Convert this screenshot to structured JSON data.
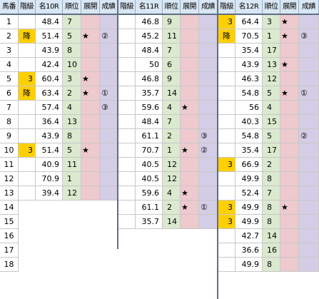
{
  "headers": {
    "umaban": "馬番",
    "kaikyu": "階級",
    "race1": "名10R",
    "race2": "名11R",
    "race3": "名12R",
    "rank": "順位",
    "tenkai": "展開",
    "seiseki": "成績"
  },
  "row_numbers": [
    "1",
    "2",
    "3",
    "4",
    "5",
    "6",
    "7",
    "8",
    "9",
    "10",
    "11",
    "12",
    "13",
    "14",
    "15",
    "16",
    "17",
    "18"
  ],
  "races": [
    {
      "rows": [
        {
          "kaikyu": "",
          "odds": "48.4",
          "rank": "7",
          "tenkai": "",
          "seiseki": ""
        },
        {
          "kaikyu": "降",
          "odds": "51.4",
          "rank": "5",
          "tenkai": "★",
          "seiseki": "②"
        },
        {
          "kaikyu": "",
          "odds": "43.9",
          "rank": "8",
          "tenkai": "",
          "seiseki": ""
        },
        {
          "kaikyu": "",
          "odds": "42.4",
          "rank": "10",
          "tenkai": "",
          "seiseki": ""
        },
        {
          "kaikyu": "3",
          "odds": "60.4",
          "rank": "3",
          "tenkai": "★",
          "seiseki": ""
        },
        {
          "kaikyu": "降",
          "odds": "63.4",
          "rank": "2",
          "tenkai": "★",
          "seiseki": "①"
        },
        {
          "kaikyu": "",
          "odds": "57.4",
          "rank": "4",
          "tenkai": "",
          "seiseki": "③"
        },
        {
          "kaikyu": "",
          "odds": "36.4",
          "rank": "13",
          "tenkai": "",
          "seiseki": ""
        },
        {
          "kaikyu": "",
          "odds": "43.9",
          "rank": "8",
          "tenkai": "",
          "seiseki": ""
        },
        {
          "kaikyu": "3",
          "odds": "51.4",
          "rank": "5",
          "tenkai": "★",
          "seiseki": ""
        },
        {
          "kaikyu": "",
          "odds": "40.9",
          "rank": "11",
          "tenkai": "",
          "seiseki": ""
        },
        {
          "kaikyu": "",
          "odds": "70.9",
          "rank": "1",
          "tenkai": "",
          "seiseki": ""
        },
        {
          "kaikyu": "",
          "odds": "39.4",
          "rank": "12",
          "tenkai": "",
          "seiseki": ""
        }
      ]
    },
    {
      "rows": [
        {
          "kaikyu": "",
          "odds": "46.8",
          "rank": "9",
          "tenkai": "",
          "seiseki": ""
        },
        {
          "kaikyu": "",
          "odds": "45.2",
          "rank": "11",
          "tenkai": "",
          "seiseki": ""
        },
        {
          "kaikyu": "",
          "odds": "48.4",
          "rank": "7",
          "tenkai": "",
          "seiseki": ""
        },
        {
          "kaikyu": "",
          "odds": "50",
          "rank": "6",
          "tenkai": "",
          "seiseki": ""
        },
        {
          "kaikyu": "",
          "odds": "46.8",
          "rank": "9",
          "tenkai": "",
          "seiseki": ""
        },
        {
          "kaikyu": "",
          "odds": "35.7",
          "rank": "14",
          "tenkai": "",
          "seiseki": ""
        },
        {
          "kaikyu": "",
          "odds": "59.6",
          "rank": "4",
          "tenkai": "★",
          "seiseki": ""
        },
        {
          "kaikyu": "",
          "odds": "48.4",
          "rank": "7",
          "tenkai": "",
          "seiseki": ""
        },
        {
          "kaikyu": "",
          "odds": "61.1",
          "rank": "2",
          "tenkai": "",
          "seiseki": "③"
        },
        {
          "kaikyu": "",
          "odds": "70.7",
          "rank": "1",
          "tenkai": "★",
          "seiseki": "②"
        },
        {
          "kaikyu": "",
          "odds": "40.5",
          "rank": "12",
          "tenkai": "",
          "seiseki": ""
        },
        {
          "kaikyu": "",
          "odds": "40.5",
          "rank": "12",
          "tenkai": "",
          "seiseki": ""
        },
        {
          "kaikyu": "",
          "odds": "59.6",
          "rank": "4",
          "tenkai": "★",
          "seiseki": ""
        },
        {
          "kaikyu": "",
          "odds": "61.1",
          "rank": "2",
          "tenkai": "★",
          "seiseki": "①"
        },
        {
          "kaikyu": "",
          "odds": "35.7",
          "rank": "14",
          "tenkai": "",
          "seiseki": ""
        }
      ]
    },
    {
      "rows": [
        {
          "kaikyu": "3",
          "odds": "64.4",
          "rank": "3",
          "tenkai": "★",
          "seiseki": ""
        },
        {
          "kaikyu": "降",
          "odds": "70.5",
          "rank": "1",
          "tenkai": "★",
          "seiseki": "③"
        },
        {
          "kaikyu": "",
          "odds": "35.4",
          "rank": "17",
          "tenkai": "",
          "seiseki": ""
        },
        {
          "kaikyu": "",
          "odds": "43.9",
          "rank": "13",
          "tenkai": "★",
          "seiseki": ""
        },
        {
          "kaikyu": "",
          "odds": "46.3",
          "rank": "12",
          "tenkai": "",
          "seiseki": ""
        },
        {
          "kaikyu": "",
          "odds": "54.8",
          "rank": "5",
          "tenkai": "★",
          "seiseki": "①"
        },
        {
          "kaikyu": "",
          "odds": "56",
          "rank": "4",
          "tenkai": "",
          "seiseki": ""
        },
        {
          "kaikyu": "",
          "odds": "40.3",
          "rank": "15",
          "tenkai": "",
          "seiseki": ""
        },
        {
          "kaikyu": "",
          "odds": "54.8",
          "rank": "5",
          "tenkai": "",
          "seiseki": "②"
        },
        {
          "kaikyu": "",
          "odds": "35.4",
          "rank": "17",
          "tenkai": "",
          "seiseki": ""
        },
        {
          "kaikyu": "3",
          "odds": "66.9",
          "rank": "2",
          "tenkai": "",
          "seiseki": ""
        },
        {
          "kaikyu": "",
          "odds": "49.9",
          "rank": "8",
          "tenkai": "",
          "seiseki": ""
        },
        {
          "kaikyu": "",
          "odds": "52.4",
          "rank": "7",
          "tenkai": "",
          "seiseki": ""
        },
        {
          "kaikyu": "3",
          "odds": "49.9",
          "rank": "8",
          "tenkai": "★",
          "seiseki": ""
        },
        {
          "kaikyu": "3",
          "odds": "49.9",
          "rank": "8",
          "tenkai": "",
          "seiseki": ""
        },
        {
          "kaikyu": "",
          "odds": "42.7",
          "rank": "14",
          "tenkai": "",
          "seiseki": ""
        },
        {
          "kaikyu": "",
          "odds": "36.6",
          "rank": "16",
          "tenkai": "",
          "seiseki": ""
        },
        {
          "kaikyu": "",
          "odds": "49.9",
          "rank": "8",
          "tenkai": "",
          "seiseki": ""
        }
      ]
    }
  ],
  "colors": {
    "header_bg": "#d9e7f4",
    "rank_bg": "#dbe9cf",
    "tenkai_bg": "#eec9cd",
    "seiseki_bg": "#d4cde6",
    "highlight": "#ffd000",
    "divider": "#5d6f86"
  }
}
